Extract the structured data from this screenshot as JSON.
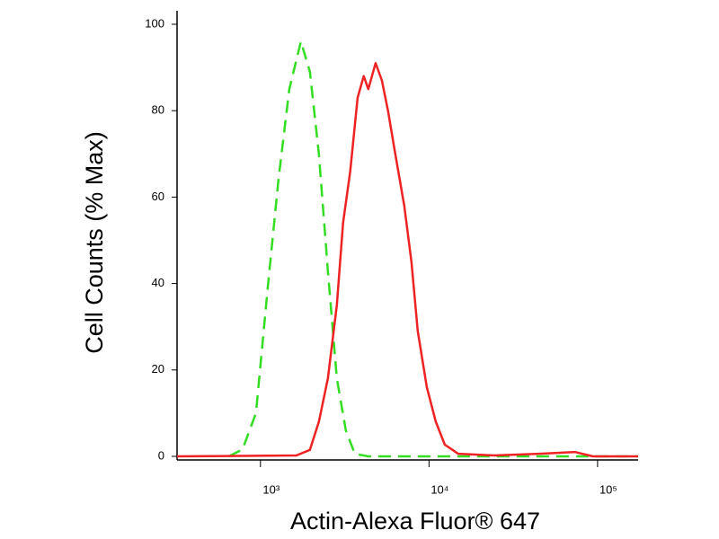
{
  "chart_data": {
    "type": "line",
    "xlabel": "Actin-Alexa Fluor® 647",
    "ylabel": "Cell Counts (% Max)",
    "xscale": "log",
    "xlim": [
      320,
      174000
    ],
    "ylim": [
      0,
      100
    ],
    "xticks": [
      {
        "value": 1000,
        "label": "10³"
      },
      {
        "value": 10000,
        "label": "10⁴"
      },
      {
        "value": 100000,
        "label": "10⁵"
      }
    ],
    "yticks": [
      0,
      20,
      40,
      60,
      80,
      100
    ],
    "series": [
      {
        "color": "#33dd22",
        "dashed": true,
        "x": [
          650,
          782,
          940,
          1104,
          1278,
          1483,
          1738,
          1965,
          2222,
          2512,
          2840,
          3211,
          3631,
          4365,
          10000,
          50000,
          174000
        ],
        "values": [
          0,
          1.6,
          10,
          39,
          64,
          85,
          96,
          89,
          70,
          43,
          18,
          6,
          0.6,
          0,
          0,
          0,
          0
        ]
      },
      {
        "color": "#ee2222",
        "dashed": false,
        "x": [
          320,
          1634,
          1965,
          2222,
          2512,
          2840,
          3090,
          3410,
          3770,
          4100,
          4365,
          4820,
          5250,
          5710,
          6310,
          7130,
          7870,
          8570,
          9700,
          10970,
          12400,
          14900,
          24350,
          45000,
          73600,
          94000,
          174000
        ],
        "values": [
          0,
          0.2,
          1.5,
          8,
          18,
          35,
          54,
          66,
          83,
          88,
          85,
          91,
          87,
          80,
          70,
          58,
          45,
          29,
          16,
          8,
          2.7,
          0.6,
          0.2,
          0.6,
          1,
          0,
          0
        ]
      }
    ]
  }
}
